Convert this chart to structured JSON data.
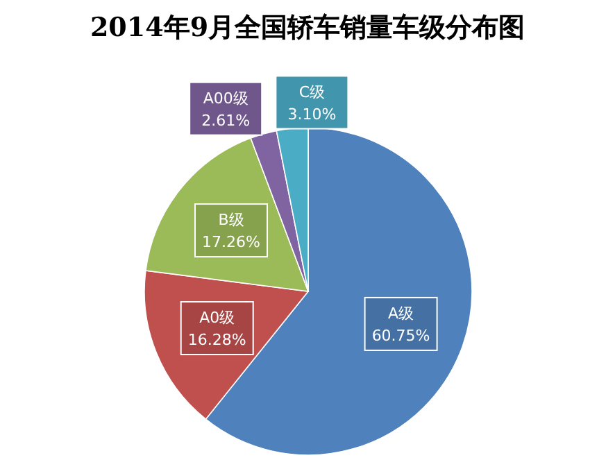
{
  "chart_data": {
    "type": "pie",
    "title": "2014年9月全国轿车销量车级分布图",
    "categories": [
      "A级",
      "A0级",
      "B级",
      "A00级",
      "C级"
    ],
    "values": [
      60.75,
      16.28,
      17.26,
      2.61,
      3.1
    ],
    "colors": [
      "#4f81bd",
      "#c0504d",
      "#9bbb59",
      "#8064a2",
      "#4bacc6"
    ],
    "value_labels": [
      "60.75%",
      "16.28%",
      "17.26%",
      "2.61%",
      "3.10%"
    ]
  }
}
